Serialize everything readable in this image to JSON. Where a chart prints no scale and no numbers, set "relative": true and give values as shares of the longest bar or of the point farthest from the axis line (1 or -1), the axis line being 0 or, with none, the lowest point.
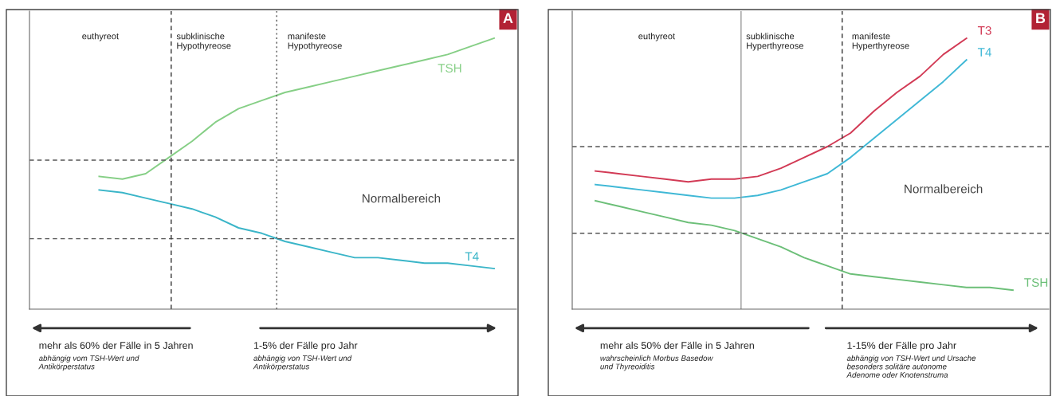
{
  "chart_data": [
    {
      "type": "line",
      "title": "A",
      "relative": true,
      "marker": "none",
      "line_style": "solid",
      "categories": [
        null,
        null,
        null,
        null,
        null,
        null,
        null,
        null,
        null,
        null,
        null,
        null,
        null,
        null,
        null,
        null,
        null,
        null,
        null,
        null,
        null
      ],
      "series": [
        {
          "name": "TSH",
          "color": "#86cf86",
          "values": [
            null,
            null,
            null,
            0.49,
            0.48,
            0.5,
            0.56,
            0.62,
            0.69,
            0.74,
            0.77,
            0.8,
            0.82,
            0.84,
            0.86,
            0.88,
            0.9,
            0.92,
            0.94,
            0.97,
            1.0
          ]
        },
        {
          "name": "T4",
          "color": "#3ab5c8",
          "values": [
            null,
            null,
            null,
            0.44,
            0.43,
            0.41,
            0.39,
            0.37,
            0.34,
            0.3,
            0.28,
            0.25,
            0.23,
            0.21,
            0.19,
            0.19,
            0.18,
            0.17,
            0.17,
            0.16,
            0.15
          ]
        }
      ],
      "ref_lines": [
        {
          "axis": "y",
          "value": 0.26,
          "line_style": "dashed",
          "color": "#555555"
        },
        {
          "axis": "y",
          "value": 0.55,
          "line_style": "dashed",
          "color": "#555555"
        }
      ],
      "annotations": [
        "euthyreot",
        "subklinische\nHypothyreose",
        "manifeste\nHypothyreose",
        "Normalbereich",
        "mehr als 60% der Fälle in 5 Jahren",
        "abhängig vom TSH-Wert und\nAntikörperstatus",
        "1-5% der Fälle pro Jahr",
        "abhängig von TSH-Wert und\nAntikörperstatus"
      ]
    },
    {
      "type": "line",
      "title": "B",
      "relative": true,
      "marker": "none",
      "line_style": "solid",
      "categories": [
        null,
        null,
        null,
        null,
        null,
        null,
        null,
        null,
        null,
        null,
        null,
        null,
        null,
        null,
        null,
        null,
        null,
        null,
        null,
        null,
        null
      ],
      "series": [
        {
          "name": "T3",
          "color": "#d23a55",
          "values": [
            null,
            0.51,
            0.5,
            0.49,
            0.48,
            0.47,
            0.48,
            0.48,
            0.49,
            0.52,
            0.56,
            0.6,
            0.65,
            0.73,
            0.8,
            0.86,
            0.94,
            1.0,
            null,
            null,
            null
          ]
        },
        {
          "name": "T4",
          "color": "#3fb8d6",
          "values": [
            null,
            0.46,
            0.45,
            0.44,
            0.43,
            0.42,
            0.41,
            0.41,
            0.42,
            0.44,
            0.47,
            0.5,
            0.56,
            0.63,
            0.7,
            0.77,
            0.84,
            0.92,
            null,
            null,
            null
          ]
        },
        {
          "name": "TSH",
          "color": "#6cbf78",
          "values": [
            null,
            0.4,
            0.38,
            0.36,
            0.34,
            0.32,
            0.31,
            0.29,
            0.26,
            0.23,
            0.19,
            0.16,
            0.13,
            0.12,
            0.11,
            0.1,
            0.09,
            0.08,
            0.08,
            0.07,
            null
          ]
        }
      ],
      "ref_lines": [
        {
          "axis": "y",
          "value": 0.28,
          "line_style": "dashed",
          "color": "#555555"
        },
        {
          "axis": "y",
          "value": 0.6,
          "line_style": "dashed",
          "color": "#555555"
        }
      ],
      "annotations": [
        "euthyreot",
        "subklinische\nHyperthyreose",
        "manifeste\nHyperthyreose",
        "Normalbereich",
        "mehr als 50% der Fälle in 5 Jahren",
        "wahrscheinlich Morbus Basedow\nund Thyreoiditis",
        "1-15% der Fälle pro Jahr",
        "abhängig von TSH-Wert und Ursache\nbesonders solitäre autonome\nAdenome oder Knotenstruma"
      ]
    }
  ]
}
